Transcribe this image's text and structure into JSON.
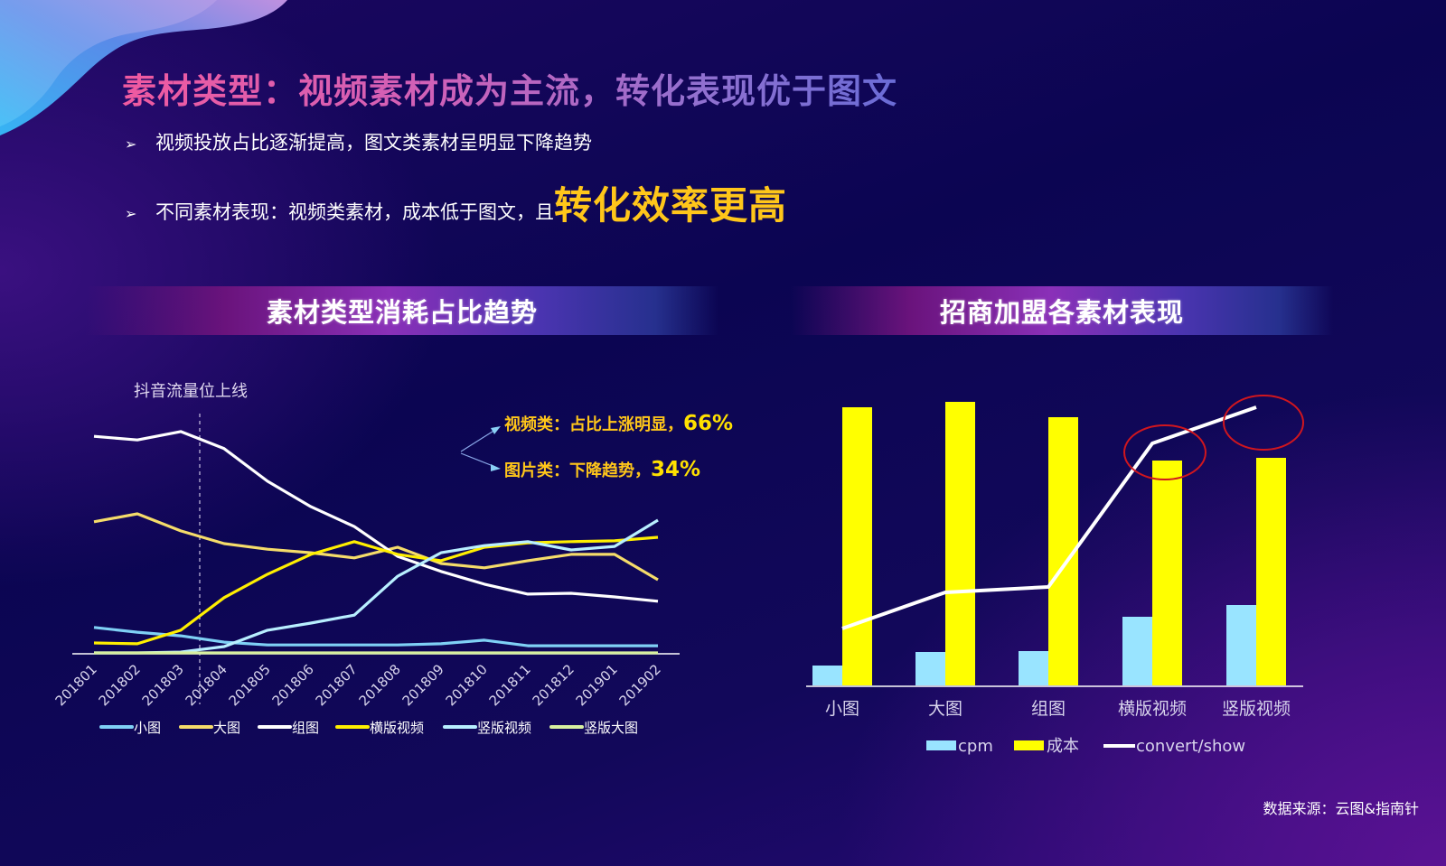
{
  "header": {
    "title": "素材类型：视频素材成为主流，转化表现优于图文",
    "bullets": [
      {
        "text": "视频投放占比逐渐提高，图文类素材呈明显下降趋势",
        "highlight": ""
      },
      {
        "text": "不同素材表现：视频类素材，成本低于图文，且",
        "highlight": "转化效率更高"
      }
    ],
    "bullet_icon": "➢"
  },
  "left_panel": {
    "banner": "素材类型消耗占比趋势",
    "annotation_marker": "抖音流量位上线",
    "callouts": [
      {
        "label": "视频类：占比上涨明显，",
        "value": "66%"
      },
      {
        "label": "图片类：下降趋势，",
        "value": "34%"
      }
    ]
  },
  "right_panel": {
    "banner": "招商加盟各素材表现"
  },
  "footer": {
    "source": "数据来源：云图&指南针"
  },
  "colors": {
    "small_image": "#7fd0f5",
    "large_image": "#f5dc6a",
    "group_image": "#ffffff",
    "horizontal_video": "#ffef00",
    "vertical_video": "#b8efff",
    "vertical_large_image": "#d8f0a0",
    "cpm": "#99e4ff",
    "cost": "#ffff00",
    "convert_show": "#ffffff",
    "highlight": "#ffc61a",
    "circle": "#d0161e"
  },
  "chart_data": [
    {
      "type": "line",
      "title": "素材类型消耗占比趋势",
      "xlabel": "",
      "ylabel": "",
      "categories": [
        "201801",
        "201802",
        "201803",
        "201804",
        "201805",
        "201806",
        "201807",
        "201808",
        "201809",
        "201810",
        "201811",
        "201812",
        "201901",
        "201902"
      ],
      "series": [
        {
          "name": "小图",
          "color": "#7fd0f5",
          "values": [
            6.4,
            5.2,
            4.3,
            2.7,
            2.0,
            2.0,
            2.0,
            2.0,
            2.3,
            3.2,
            1.8,
            1.8,
            1.8,
            1.8
          ]
        },
        {
          "name": "大图",
          "color": "#f5dc6a",
          "values": [
            33.0,
            35.0,
            30.7,
            27.5,
            26.1,
            25.2,
            23.9,
            26.6,
            22.5,
            21.4,
            23.2,
            24.8,
            24.8,
            18.4
          ]
        },
        {
          "name": "组图",
          "color": "#ffffff",
          "values": [
            54.5,
            53.6,
            55.7,
            51.4,
            43.2,
            36.8,
            31.8,
            24.3,
            20.5,
            17.3,
            14.8,
            15.0,
            14.1,
            13.0
          ]
        },
        {
          "name": "横版视频",
          "color": "#ffef00",
          "values": [
            2.5,
            2.3,
            5.7,
            13.9,
            19.8,
            24.8,
            28.0,
            24.8,
            23.2,
            26.6,
            27.7,
            28.0,
            28.2,
            29.1
          ]
        },
        {
          "name": "竖版视频",
          "color": "#b8efff",
          "values": [
            0.0,
            0.0,
            0.2,
            1.6,
            5.7,
            7.5,
            9.5,
            19.3,
            25.2,
            27.0,
            28.0,
            25.9,
            26.8,
            33.4
          ]
        },
        {
          "name": "竖版大图",
          "color": "#d8f0a0",
          "values": [
            0,
            0,
            0,
            0,
            0,
            0,
            0,
            0,
            0,
            0,
            0,
            0,
            0,
            0
          ]
        }
      ],
      "annotations": [
        {
          "type": "vline",
          "x": "201804",
          "text": "抖音流量位上线"
        },
        {
          "text": "视频类：占比上涨明显，66%"
        },
        {
          "text": "图片类：下降趋势，34%"
        }
      ],
      "grid": false,
      "legend_position": "bottom",
      "ylim": [
        0,
        60
      ]
    },
    {
      "type": "bar",
      "title": "招商加盟各素材表现",
      "xlabel": "",
      "ylabel": "",
      "categories": [
        "小图",
        "大图",
        "组图",
        "横版视频",
        "竖版视频"
      ],
      "series": [
        {
          "name": "cpm",
          "type": "bar",
          "color": "#99e4ff",
          "values": [
            22,
            37,
            38,
            76,
            89
          ]
        },
        {
          "name": "成本",
          "type": "bar",
          "color": "#ffff00",
          "values": [
            308,
            314,
            297,
            249,
            252
          ]
        },
        {
          "name": "convert/show",
          "type": "line",
          "color": "#ffffff",
          "values": [
            63,
            103,
            109,
            268,
            308
          ]
        }
      ],
      "annotations": [
        {
          "type": "circle",
          "category": "横版视频"
        },
        {
          "type": "circle",
          "category": "竖版视频"
        }
      ],
      "grid": false,
      "legend_position": "bottom",
      "ylim": [
        0,
        320
      ]
    }
  ]
}
